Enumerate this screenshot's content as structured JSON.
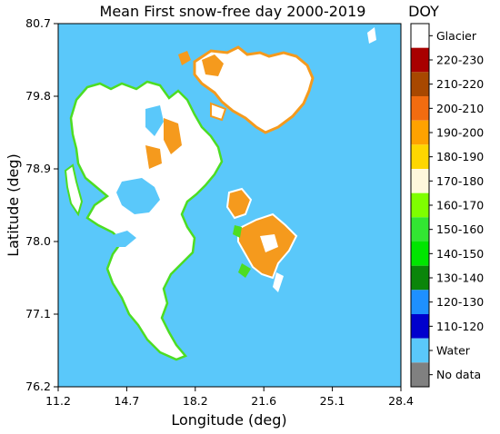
{
  "title": "Mean First snow-free day 2000-2019",
  "xlabel": "Longitude (deg)",
  "ylabel": "Latitude (deg)",
  "x_ticks": [
    "11.2",
    "14.7",
    "18.2",
    "21.6",
    "25.1",
    "28.4"
  ],
  "y_ticks": [
    "80.7",
    "79.8",
    "78.9",
    "78.0",
    "77.1",
    "76.2"
  ],
  "colorbar": {
    "title": "DOY",
    "entries": [
      {
        "label": "Glacier",
        "color": "#ffffff"
      },
      {
        "label": "220-230",
        "color": "#a80000"
      },
      {
        "label": "210-220",
        "color": "#a84800"
      },
      {
        "label": "200-210",
        "color": "#f26c10"
      },
      {
        "label": "190-200",
        "color": "#ffa200"
      },
      {
        "label": "180-190",
        "color": "#ffd700"
      },
      {
        "label": "170-180",
        "color": "#fff8dc"
      },
      {
        "label": "160-170",
        "color": "#7fff00"
      },
      {
        "label": "150-160",
        "color": "#32e632"
      },
      {
        "label": "140-150",
        "color": "#00e600"
      },
      {
        "label": "130-140",
        "color": "#0a850a"
      },
      {
        "label": "120-130",
        "color": "#1e90ff"
      },
      {
        "label": "110-120",
        "color": "#0000cd"
      },
      {
        "label": "Water",
        "color": "#5ac8fa"
      },
      {
        "label": "No data",
        "color": "#808080"
      }
    ]
  },
  "colors": {
    "water": "#5ac8fa",
    "glacier": "#ffffff",
    "orange": "#f59a1d",
    "green": "#4ddd22"
  }
}
